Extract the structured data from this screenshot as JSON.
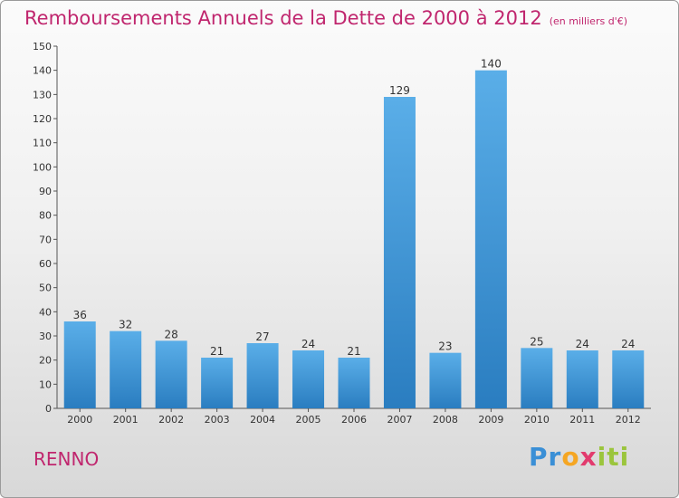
{
  "header": {
    "title": "Remboursements Annuels de la Dette de 2000 à 2012",
    "unit": "(en milliers d'€)"
  },
  "footer": {
    "city": "RENNO",
    "logo": "Proxiti"
  },
  "colors": {
    "title": "#c0266e",
    "bar_top": "#5aaee8",
    "bar_bottom": "#2a7dc0"
  },
  "chart_data": {
    "type": "bar",
    "title": "Remboursements Annuels de la Dette de 2000 à 2012",
    "subtitle": "(en milliers d'€)",
    "categories": [
      "2000",
      "2001",
      "2002",
      "2003",
      "2004",
      "2005",
      "2006",
      "2007",
      "2008",
      "2009",
      "2010",
      "2011",
      "2012"
    ],
    "values": [
      36,
      32,
      28,
      21,
      27,
      24,
      21,
      129,
      23,
      140,
      25,
      24,
      24
    ],
    "ylim": [
      0,
      150
    ],
    "yticks": [
      0,
      10,
      20,
      30,
      40,
      50,
      60,
      70,
      80,
      90,
      100,
      110,
      120,
      130,
      140,
      150
    ],
    "grid": false
  }
}
